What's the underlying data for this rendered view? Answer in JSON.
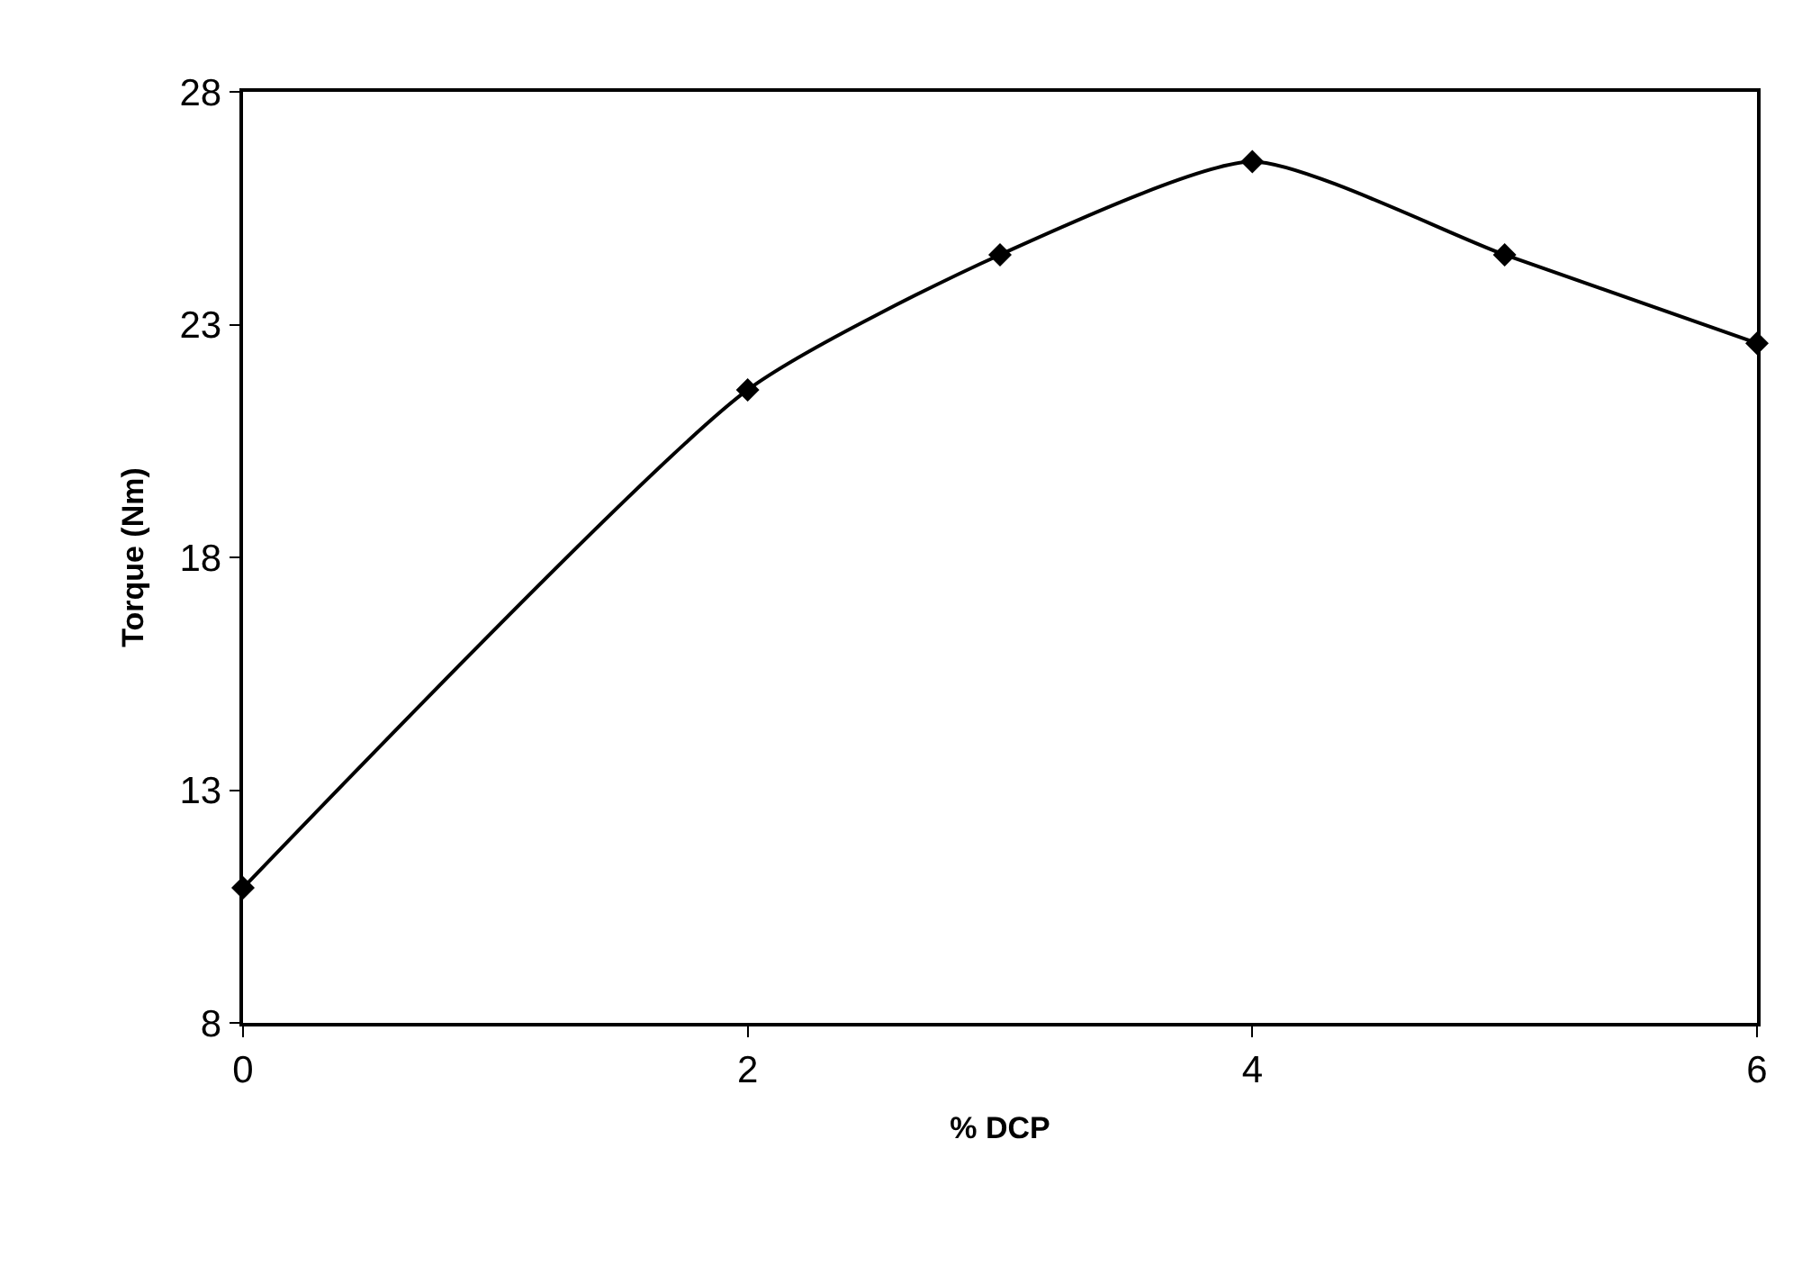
{
  "chart_data": {
    "type": "line",
    "xlabel": "% DCP",
    "ylabel": "Torque (Nm)",
    "x": [
      0,
      2,
      3,
      4,
      5,
      6
    ],
    "series": [
      {
        "color": "#000000",
        "values": [
          10.9,
          21.6,
          24.5,
          26.5,
          24.5,
          22.6
        ]
      }
    ],
    "xlim": [
      0,
      6
    ],
    "xticks": [
      0,
      2,
      4,
      6
    ],
    "ylim": [
      8,
      28
    ],
    "yticks": [
      8,
      13,
      18,
      23,
      28
    ],
    "legend": false,
    "marker": "diamond",
    "line_style": "solid"
  }
}
